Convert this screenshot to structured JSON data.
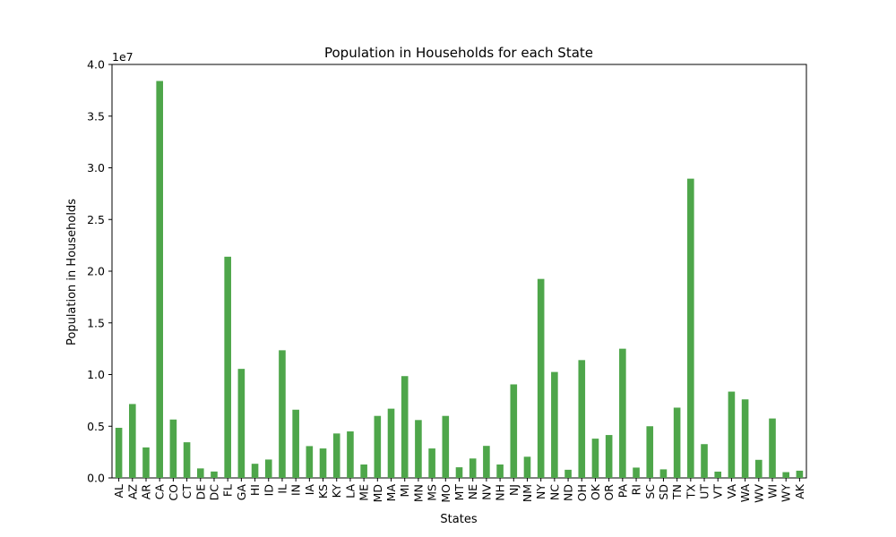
{
  "chart_data": {
    "type": "bar",
    "title": "Population in Households for each State",
    "xlabel": "States",
    "ylabel": "Population in Households",
    "offset_text": "1e7",
    "ylim": [
      0,
      40000000
    ],
    "yticks": [
      0,
      5000000,
      10000000,
      15000000,
      20000000,
      25000000,
      30000000,
      35000000,
      40000000
    ],
    "ytick_labels": [
      "0.0",
      "0.5",
      "1.0",
      "1.5",
      "2.0",
      "2.5",
      "3.0",
      "3.5",
      "4.0"
    ],
    "grid": false,
    "bar_color": "#4ea64a",
    "categories": [
      "AL",
      "AZ",
      "AR",
      "CA",
      "CO",
      "CT",
      "DE",
      "DC",
      "FL",
      "GA",
      "HI",
      "ID",
      "IL",
      "IN",
      "IA",
      "KS",
      "KY",
      "LA",
      "ME",
      "MD",
      "MA",
      "MI",
      "MN",
      "MS",
      "MO",
      "MT",
      "NE",
      "NV",
      "NH",
      "NJ",
      "NM",
      "NY",
      "NC",
      "ND",
      "OH",
      "OK",
      "OR",
      "PA",
      "RI",
      "SC",
      "SD",
      "TN",
      "TX",
      "UT",
      "VT",
      "VA",
      "WA",
      "WV",
      "WI",
      "WY",
      "AK"
    ],
    "values": [
      4850000,
      7150000,
      2950000,
      38400000,
      5650000,
      3450000,
      920000,
      620000,
      21400000,
      10550000,
      1370000,
      1780000,
      12350000,
      6600000,
      3080000,
      2850000,
      4300000,
      4500000,
      1300000,
      6000000,
      6700000,
      9850000,
      5600000,
      2850000,
      6000000,
      1030000,
      1880000,
      3100000,
      1300000,
      9050000,
      2050000,
      19250000,
      10250000,
      790000,
      11400000,
      3800000,
      4150000,
      12500000,
      1000000,
      5000000,
      830000,
      6800000,
      28950000,
      3270000,
      610000,
      8350000,
      7600000,
      1750000,
      5750000,
      560000,
      700000
    ]
  }
}
